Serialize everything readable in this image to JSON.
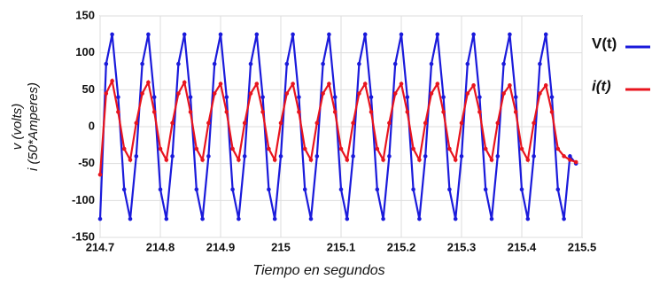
{
  "chart_data": {
    "type": "line",
    "xlabel": "Tiempo en segundos",
    "ylabel": [
      "v (volts)",
      "i (50*Amperes)"
    ],
    "x": [
      214.7,
      214.71,
      214.72,
      214.73,
      214.74,
      214.75,
      214.76,
      214.77,
      214.78,
      214.79,
      214.8,
      214.81,
      214.82,
      214.83,
      214.84,
      214.85,
      214.86,
      214.87,
      214.88,
      214.89,
      214.9,
      214.91,
      214.92,
      214.93,
      214.94,
      214.95,
      214.96,
      214.97,
      214.98,
      214.99,
      215,
      215.01,
      215.02,
      215.03,
      215.04,
      215.05,
      215.06,
      215.07,
      215.08,
      215.09,
      215.1,
      215.11,
      215.12,
      215.13,
      215.14,
      215.15,
      215.16,
      215.17,
      215.18,
      215.19,
      215.2,
      215.21,
      215.22,
      215.23,
      215.24,
      215.25,
      215.26,
      215.27,
      215.28,
      215.29,
      215.3,
      215.31,
      215.32,
      215.33,
      215.34,
      215.35,
      215.36,
      215.37,
      215.38,
      215.39,
      215.4,
      215.41,
      215.42,
      215.43,
      215.44,
      215.45,
      215.46,
      215.47,
      215.48,
      215.49
    ],
    "series": [
      {
        "name": "V(t)",
        "color": "#1a1adb",
        "values": [
          -125,
          85,
          125,
          40,
          -85,
          -125,
          -40,
          85,
          125,
          40,
          -85,
          -125,
          -40,
          85,
          125,
          40,
          -85,
          -125,
          -40,
          85,
          125,
          40,
          -85,
          -125,
          -40,
          85,
          125,
          40,
          -85,
          -125,
          -40,
          85,
          125,
          40,
          -85,
          -125,
          -40,
          85,
          125,
          40,
          -85,
          -125,
          -40,
          85,
          125,
          40,
          -85,
          -125,
          -40,
          85,
          125,
          40,
          -85,
          -125,
          -40,
          85,
          125,
          40,
          -85,
          -125,
          -40,
          85,
          125,
          40,
          -85,
          -125,
          -40,
          85,
          125,
          40,
          -85,
          -125,
          -40,
          85,
          125,
          40,
          -85,
          -125,
          -40,
          -50
        ]
      },
      {
        "name": "i(t)",
        "color": "#e8141e",
        "values": [
          -65,
          45,
          62,
          20,
          -30,
          -45,
          5,
          45,
          60,
          20,
          -30,
          -45,
          5,
          45,
          60,
          20,
          -30,
          -45,
          5,
          45,
          58,
          20,
          -30,
          -45,
          5,
          45,
          58,
          20,
          -30,
          -45,
          5,
          45,
          58,
          20,
          -30,
          -45,
          5,
          45,
          58,
          20,
          -30,
          -45,
          5,
          45,
          58,
          20,
          -30,
          -45,
          5,
          45,
          58,
          20,
          -30,
          -45,
          5,
          45,
          58,
          20,
          -30,
          -45,
          5,
          45,
          56,
          20,
          -30,
          -45,
          5,
          45,
          56,
          20,
          -30,
          -45,
          5,
          45,
          56,
          20,
          -30,
          -40,
          -45,
          -48
        ]
      }
    ],
    "xlim": [
      214.7,
      215.5
    ],
    "xticks": [
      214.7,
      214.8,
      214.9,
      215,
      215.1,
      215.2,
      215.3,
      215.4,
      215.5
    ],
    "ylim": [
      -150,
      150
    ],
    "yticks": [
      -150,
      -100,
      -50,
      0,
      50,
      100,
      150
    ],
    "grid": true,
    "legend": "right"
  }
}
